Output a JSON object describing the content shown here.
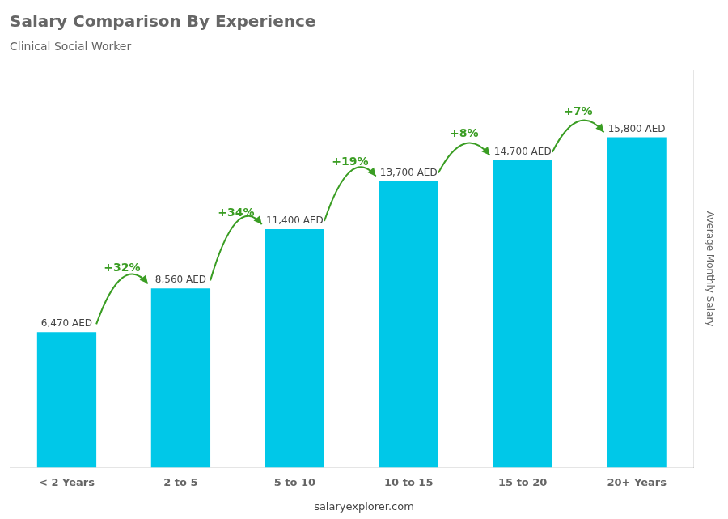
{
  "chart_data": {
    "type": "bar",
    "title": "Salary Comparison By Experience",
    "subtitle": "Clinical Social Worker",
    "ylabel": "Average Monthly Salary",
    "categories": [
      "< 2 Years",
      "2 to 5",
      "5 to 10",
      "10 to 15",
      "15 to 20",
      "20+ Years"
    ],
    "values": [
      6470,
      8560,
      11400,
      13700,
      14700,
      15800
    ],
    "value_labels": [
      "6,470 AED",
      "8,560 AED",
      "11,400 AED",
      "13,700 AED",
      "14,700 AED",
      "15,800 AED"
    ],
    "data_labels": true,
    "color": "#00c8e8",
    "annotations": [
      "+32%",
      "+34%",
      "+19%",
      "+8%",
      "+7%"
    ],
    "footer": "salaryexplorer.com",
    "ylim": [
      0,
      19000
    ],
    "grid": false,
    "tick_labels": "x"
  }
}
